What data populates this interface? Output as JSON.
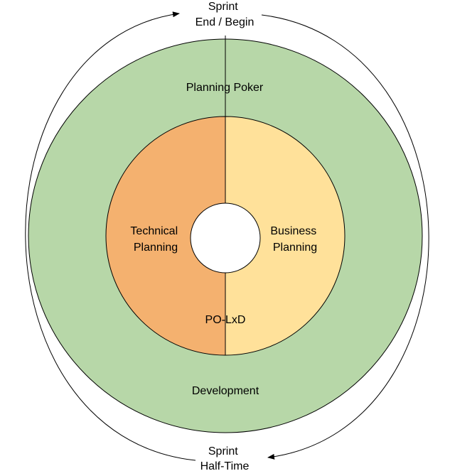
{
  "colors": {
    "outer_ring": "#b7d7a8",
    "technical_half": "#f4b16f",
    "business_half": "#ffe19a",
    "center_hole": "#ffffff",
    "stroke": "#000000"
  },
  "labels": {
    "sprint_end_begin": [
      "Sprint",
      "End / Begin"
    ],
    "sprint_half_time": [
      "Sprint",
      "Half-Time"
    ],
    "planning_poker": "Planning Poker",
    "development": "Development",
    "technical_planning": [
      "Technical",
      "Planning"
    ],
    "business_planning": [
      "Business",
      "Planning"
    ],
    "po_lxd": "PO-LxD"
  }
}
